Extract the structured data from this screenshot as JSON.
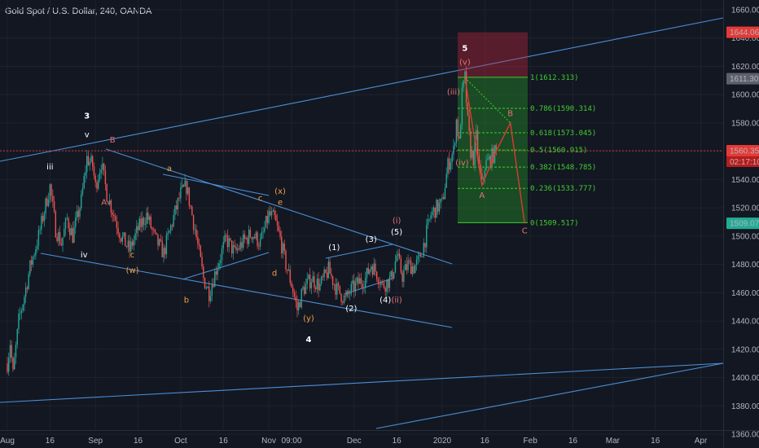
{
  "header": {
    "title": "Gold Spot / U.S. Dollar, 240, OANDA"
  },
  "chart_data": {
    "type": "candlestick",
    "symbol": "Gold Spot / U.S. Dollar",
    "interval": "240",
    "exchange": "OANDA",
    "ylim": [
      1350,
      1670
    ],
    "y_ticks": [
      1360,
      1380,
      1400,
      1420,
      1440,
      1460,
      1480,
      1500,
      1520,
      1540,
      1560,
      1580,
      1600,
      1620,
      1640,
      1660
    ],
    "x_ticks": [
      {
        "label": "Aug",
        "t": 0
      },
      {
        "label": "16",
        "t": 15
      },
      {
        "label": "Sep",
        "t": 31
      },
      {
        "label": "16",
        "t": 46
      },
      {
        "label": "Oct",
        "t": 61
      },
      {
        "label": "16",
        "t": 76
      },
      {
        "label": "Nov",
        "t": 92
      },
      {
        "label": "09:00",
        "t": 100
      },
      {
        "label": "Dec",
        "t": 122
      },
      {
        "label": "16",
        "t": 137
      },
      {
        "label": "2020",
        "t": 153
      },
      {
        "label": "16",
        "t": 168
      },
      {
        "label": "Feb",
        "t": 184
      },
      {
        "label": "16",
        "t": 199
      },
      {
        "label": "Mar",
        "t": 213
      },
      {
        "label": "16",
        "t": 228
      },
      {
        "label": "Apr",
        "t": 244
      }
    ],
    "price_path": [
      [
        0,
        1410
      ],
      [
        1,
        1425
      ],
      [
        2,
        1402
      ],
      [
        4,
        1440
      ],
      [
        6,
        1458
      ],
      [
        8,
        1478
      ],
      [
        11,
        1500
      ],
      [
        13,
        1518
      ],
      [
        15,
        1535
      ],
      [
        17,
        1505
      ],
      [
        19,
        1495
      ],
      [
        21,
        1512
      ],
      [
        23,
        1500
      ],
      [
        26,
        1525
      ],
      [
        28,
        1555
      ],
      [
        30,
        1550
      ],
      [
        31,
        1535
      ],
      [
        33,
        1552
      ],
      [
        35,
        1530
      ],
      [
        37,
        1518
      ],
      [
        40,
        1500
      ],
      [
        43,
        1490
      ],
      [
        46,
        1505
      ],
      [
        49,
        1515
      ],
      [
        52,
        1498
      ],
      [
        55,
        1488
      ],
      [
        58,
        1510
      ],
      [
        61,
        1530
      ],
      [
        63,
        1535
      ],
      [
        66,
        1505
      ],
      [
        69,
        1470
      ],
      [
        71,
        1460
      ],
      [
        74,
        1480
      ],
      [
        77,
        1498
      ],
      [
        80,
        1488
      ],
      [
        83,
        1496
      ],
      [
        86,
        1502
      ],
      [
        89,
        1495
      ],
      [
        92,
        1515
      ],
      [
        94,
        1512
      ],
      [
        96,
        1498
      ],
      [
        98,
        1480
      ],
      [
        100,
        1466
      ],
      [
        102,
        1448
      ],
      [
        104,
        1462
      ],
      [
        107,
        1470
      ],
      [
        110,
        1465
      ],
      [
        113,
        1476
      ],
      [
        116,
        1462
      ],
      [
        119,
        1455
      ],
      [
        121,
        1462
      ],
      [
        124,
        1468
      ],
      [
        126,
        1470
      ],
      [
        128,
        1480
      ],
      [
        130,
        1474
      ],
      [
        132,
        1465
      ],
      [
        135,
        1470
      ],
      [
        137,
        1486
      ],
      [
        139,
        1472
      ],
      [
        141,
        1480
      ],
      [
        143,
        1478
      ],
      [
        145,
        1483
      ],
      [
        147,
        1498
      ],
      [
        149,
        1515
      ],
      [
        151,
        1520
      ],
      [
        153,
        1523
      ],
      [
        155,
        1550
      ],
      [
        157,
        1560
      ],
      [
        158,
        1582
      ],
      [
        159,
        1565
      ],
      [
        160,
        1600
      ],
      [
        161,
        1612
      ],
      [
        162,
        1580
      ],
      [
        163,
        1560
      ],
      [
        164,
        1555
      ],
      [
        165,
        1570
      ],
      [
        166,
        1548
      ],
      [
        167,
        1536
      ],
      [
        168,
        1550
      ],
      [
        170,
        1555
      ],
      [
        172,
        1560
      ]
    ],
    "last_price": 1560.353,
    "countdown": "02:17:10",
    "price_labels": [
      {
        "value": 1644.064,
        "text": "1644.064",
        "color": "#e53935"
      },
      {
        "value": 1611.307,
        "text": "1611.307",
        "color": "#5d606b"
      },
      {
        "value": 1560.353,
        "text": "1560.353",
        "color": "#e53935"
      },
      {
        "value": 1509.076,
        "text": "1509.076",
        "color": "#22ab94"
      }
    ],
    "fib_levels": [
      {
        "ratio": "1",
        "value": 1612.313,
        "text": "1(1612.313)"
      },
      {
        "ratio": "0.786",
        "value": 1590.314,
        "text": "0.786(1590.314)"
      },
      {
        "ratio": "0.618",
        "value": 1573.045,
        "text": "0.618(1573.045)"
      },
      {
        "ratio": "0.5",
        "value": 1560.915,
        "text": "0.5(1560.915)"
      },
      {
        "ratio": "0.382",
        "value": 1548.785,
        "text": "0.382(1548.785)"
      },
      {
        "ratio": "0.236",
        "value": 1533.777,
        "text": "0.236(1533.777)"
      },
      {
        "ratio": "0",
        "value": 1509.517,
        "text": "0(1509.517)"
      }
    ],
    "wave_labels": [
      {
        "text": "3",
        "t": 28,
        "price": 1583,
        "color": "#ffffff",
        "size": "large"
      },
      {
        "text": "v",
        "t": 28,
        "price": 1570,
        "color": "#ffffff",
        "size": "small"
      },
      {
        "text": "iii",
        "t": 15,
        "price": 1547,
        "color": "#ffffff",
        "size": "small"
      },
      {
        "text": "iv",
        "t": 27,
        "price": 1485,
        "color": "#ffffff",
        "size": "small"
      },
      {
        "text": "B",
        "t": 37,
        "price": 1566,
        "color": "#e57373",
        "size": "tiny"
      },
      {
        "text": "A",
        "t": 34,
        "price": 1522,
        "color": "#e57373",
        "size": "tiny"
      },
      {
        "text": "c",
        "t": 44,
        "price": 1485,
        "color": "#f0a040",
        "size": "small"
      },
      {
        "text": "(w)",
        "t": 44,
        "price": 1474,
        "color": "#f0a040",
        "size": "small"
      },
      {
        "text": "a",
        "t": 57,
        "price": 1546,
        "color": "#f0a040",
        "size": "small"
      },
      {
        "text": "b",
        "t": 63,
        "price": 1453,
        "color": "#f0a040",
        "size": "small"
      },
      {
        "text": "c",
        "t": 89,
        "price": 1525,
        "color": "#f0a040",
        "size": "small"
      },
      {
        "text": "(x)",
        "t": 96,
        "price": 1530,
        "color": "#f0a040",
        "size": "small"
      },
      {
        "text": "e",
        "t": 96,
        "price": 1522,
        "color": "#f0a040",
        "size": "small"
      },
      {
        "text": "d",
        "t": 94,
        "price": 1472,
        "color": "#f0a040",
        "size": "small"
      },
      {
        "text": "(y)",
        "t": 106,
        "price": 1440,
        "color": "#f0a040",
        "size": "small"
      },
      {
        "text": "4",
        "t": 106,
        "price": 1425,
        "color": "#ffffff",
        "size": "large"
      },
      {
        "text": "(1)",
        "t": 115,
        "price": 1490,
        "color": "#ffffff",
        "size": "tiny"
      },
      {
        "text": "(2)",
        "t": 121,
        "price": 1447,
        "color": "#ffffff",
        "size": "tiny"
      },
      {
        "text": "(3)",
        "t": 128,
        "price": 1496,
        "color": "#ffffff",
        "size": "tiny"
      },
      {
        "text": "(4)",
        "t": 133,
        "price": 1453,
        "color": "#ffffff",
        "size": "tiny"
      },
      {
        "text": "(5)",
        "t": 137,
        "price": 1501,
        "color": "#ffffff",
        "size": "tiny"
      },
      {
        "text": "(i)",
        "t": 137,
        "price": 1509,
        "color": "#e57373",
        "size": "small"
      },
      {
        "text": "(ii)",
        "t": 137,
        "price": 1453,
        "color": "#e57373",
        "size": "small"
      },
      {
        "text": "(iii)",
        "t": 157,
        "price": 1600,
        "color": "#e57373",
        "size": "small"
      },
      {
        "text": "(iv)",
        "t": 160,
        "price": 1550,
        "color": "#e57373",
        "size": "small"
      },
      {
        "text": "(v)",
        "t": 161,
        "price": 1621,
        "color": "#e57373",
        "size": "small"
      },
      {
        "text": "5",
        "t": 161,
        "price": 1631,
        "color": "#ffffff",
        "size": "large"
      },
      {
        "text": "A",
        "t": 167,
        "price": 1527,
        "color": "#e57373",
        "size": "tiny"
      },
      {
        "text": "B",
        "t": 177,
        "price": 1585,
        "color": "#e57373",
        "size": "tiny"
      },
      {
        "text": "C",
        "t": 182,
        "price": 1502,
        "color": "#e57373",
        "size": "tiny"
      }
    ]
  }
}
